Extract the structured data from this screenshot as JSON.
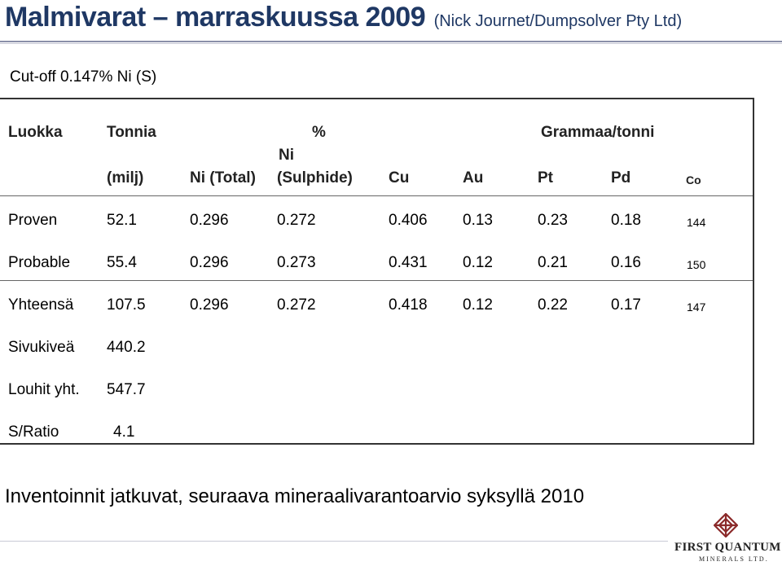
{
  "title": {
    "main": "Malmivarat – marraskuussa 2009",
    "sub": "(Nick Journet/Dumpsolver Pty Ltd)"
  },
  "cutoff": "Cut-off  0.147% Ni (S)",
  "table": {
    "group_headers": {
      "luokka": "Luokka",
      "tonnia": "Tonnia",
      "percent": "%",
      "grammaa": "Grammaa/tonni"
    },
    "column_headers": {
      "tonnia_unit": "(milj)",
      "ni_total": "Ni (Total)",
      "ni_sulphide_top": "Ni",
      "ni_sulphide_bottom": "(Sulphide)",
      "cu": "Cu",
      "au": "Au",
      "pt": "Pt",
      "pd": "Pd",
      "co": "Co"
    },
    "rows": [
      {
        "luokka": "Proven",
        "tonnia": "52.1",
        "ni_total": "0.296",
        "ni_sulphide": "0.272",
        "cu": "0.406",
        "au": "0.13",
        "pt": "0.23",
        "pd": "0.18",
        "co": "144"
      },
      {
        "luokka": "Probable",
        "tonnia": "55.4",
        "ni_total": "0.296",
        "ni_sulphide": "0.273",
        "cu": "0.431",
        "au": "0.12",
        "pt": "0.21",
        "pd": "0.16",
        "co": "150"
      },
      {
        "luokka": "Yhteensä",
        "tonnia": "107.5",
        "ni_total": "0.296",
        "ni_sulphide": "0.272",
        "cu": "0.418",
        "au": "0.12",
        "pt": "0.22",
        "pd": "0.17",
        "co": "147"
      },
      {
        "luokka": "Sivukiveä",
        "tonnia": "440.2"
      },
      {
        "luokka": "Louhit yht.",
        "tonnia": "547.7"
      },
      {
        "luokka": "S/Ratio",
        "tonnia": "4.1"
      }
    ]
  },
  "footer": "Inventoinnit jatkuvat, seuraava mineraalivarantoarvio syksyllä 2010",
  "logo": {
    "name": "FIRST QUANTUM",
    "sub": "MINERALS LTD.",
    "color": "#8b2a2a",
    "icon": "first-quantum-diamond-icon"
  },
  "colors": {
    "title": "#1f3864"
  }
}
